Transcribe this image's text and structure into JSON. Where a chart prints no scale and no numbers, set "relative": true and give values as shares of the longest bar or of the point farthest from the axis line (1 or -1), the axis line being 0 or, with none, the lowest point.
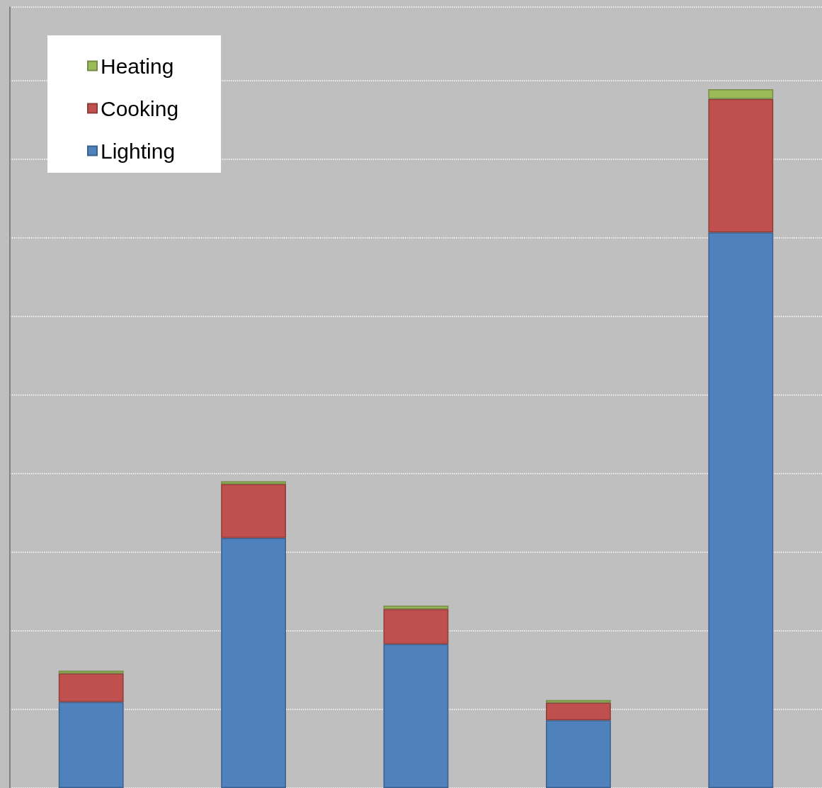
{
  "chart_data": {
    "type": "bar",
    "stacked": true,
    "relative": true,
    "grid": "y",
    "legend": "top left",
    "categories": [
      null,
      null,
      null,
      null,
      null
    ],
    "series": [
      {
        "name": "Lighting",
        "color": "#4f81bd",
        "values": [
          0.123,
          0.358,
          0.206,
          0.097,
          0.795
        ]
      },
      {
        "name": "Cooking",
        "color": "#c0504d",
        "values": [
          0.041,
          0.077,
          0.05,
          0.025,
          0.191
        ]
      },
      {
        "name": "Heating",
        "color": "#9bbb59",
        "values": [
          0.004,
          0.004,
          0.005,
          0.004,
          0.014
        ]
      }
    ]
  }
}
